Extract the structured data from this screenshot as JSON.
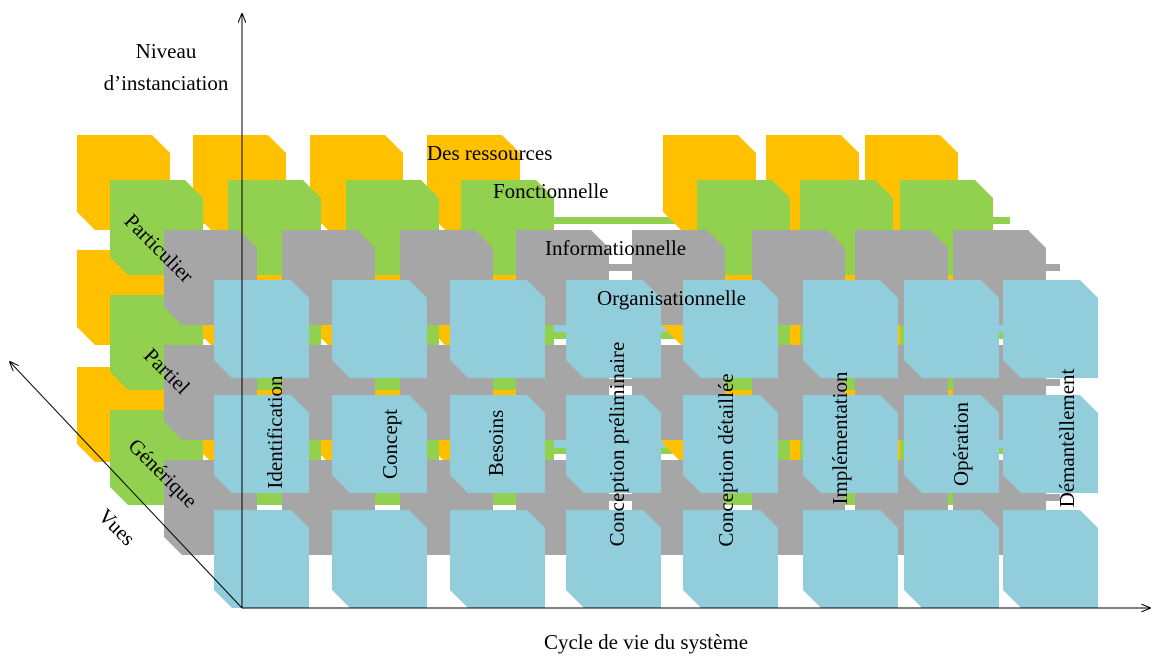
{
  "axes": {
    "vertical_label_line1": "Niveau",
    "vertical_label_line2": "d’instanciation",
    "horizontal_label": "Cycle de vie du système",
    "diagonal_label": "Vues"
  },
  "layers": [
    {
      "label": "Des ressources",
      "color": "#FFC000"
    },
    {
      "label": "Fonctionnelle",
      "color": "#92D050"
    },
    {
      "label": "Informationnelle",
      "color": "#A6A6A6"
    },
    {
      "label": "Organisationnelle",
      "color": "#92CDDC"
    }
  ],
  "levels": [
    "Particulier",
    "Partiel",
    "Générique"
  ],
  "phases": [
    "Identification",
    "Concept",
    "Besoins",
    "Conception préliminaire",
    "Conception détaillée",
    "Implémentation",
    "Opération",
    "Démantèllement"
  ]
}
